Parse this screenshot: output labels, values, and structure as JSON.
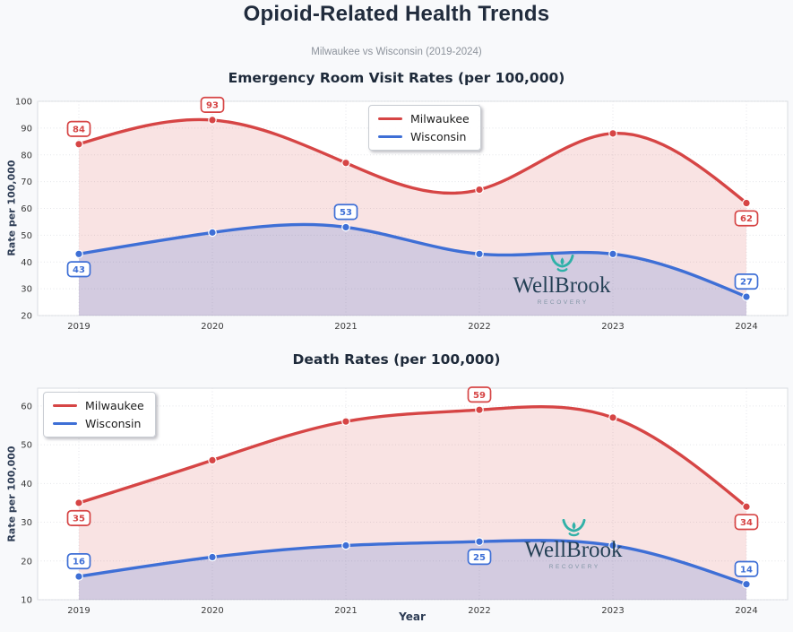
{
  "page": {
    "title": "Opioid-Related Health Trends",
    "subtitle": "Milwaukee vs Wisconsin (2019-2024)",
    "background_color": "#f8f9fb",
    "title_color": "#212c3d",
    "subtitle_color": "#8d939c"
  },
  "watermark": {
    "brand": "WellBrook",
    "tagline": "RECOVERY",
    "icon": "wellbrook-leaf-icon",
    "icon_color": "#29b0a6",
    "brand_color": "#1d3b50"
  },
  "xlabel": "Year",
  "chart_data": [
    {
      "type": "line",
      "title": "Emergency Room Visit Rates (per 100,000)",
      "ylabel": "Rate per 100,000",
      "xlabel": "",
      "x": [
        2019,
        2020,
        2021,
        2022,
        2023,
        2024
      ],
      "series": [
        {
          "name": "Milwaukee",
          "color": "#d64545",
          "values": [
            84,
            93,
            77,
            67,
            88,
            62
          ],
          "point_labels": [
            {
              "index": 0,
              "value": 84,
              "position": "above"
            },
            {
              "index": 1,
              "value": 93,
              "position": "above"
            },
            {
              "index": 5,
              "value": 62,
              "position": "below"
            }
          ]
        },
        {
          "name": "Wisconsin",
          "color": "#3e6fd6",
          "values": [
            43,
            51,
            53,
            43,
            43,
            27
          ],
          "point_labels": [
            {
              "index": 0,
              "value": 43,
              "position": "below"
            },
            {
              "index": 2,
              "value": 53,
              "position": "above"
            },
            {
              "index": 5,
              "value": 27,
              "position": "above"
            }
          ]
        }
      ],
      "ylim": [
        20,
        100
      ],
      "yticks": [
        20,
        30,
        40,
        50,
        60,
        70,
        80,
        90,
        100
      ],
      "grid": true,
      "grid_style": "dotted",
      "area_fill": true,
      "area_opacities": [
        0.15,
        0.2
      ],
      "legend_position": "top-center",
      "smooth": true
    },
    {
      "type": "line",
      "title": "Death Rates (per 100,000)",
      "ylabel": "Rate per 100,000",
      "xlabel": "Year",
      "x": [
        2019,
        2020,
        2021,
        2022,
        2023,
        2024
      ],
      "series": [
        {
          "name": "Milwaukee",
          "color": "#d64545",
          "values": [
            35,
            46,
            56,
            59,
            57,
            34
          ],
          "point_labels": [
            {
              "index": 0,
              "value": 35,
              "position": "below"
            },
            {
              "index": 3,
              "value": 59,
              "position": "above"
            },
            {
              "index": 5,
              "value": 34,
              "position": "below"
            }
          ]
        },
        {
          "name": "Wisconsin",
          "color": "#3e6fd6",
          "values": [
            16,
            21,
            24,
            25,
            24,
            14
          ],
          "point_labels": [
            {
              "index": 0,
              "value": 16,
              "position": "above"
            },
            {
              "index": 3,
              "value": 25,
              "position": "below"
            },
            {
              "index": 5,
              "value": 14,
              "position": "above"
            }
          ]
        }
      ],
      "ylim": [
        10,
        65
      ],
      "yticks": [
        10,
        20,
        30,
        40,
        50,
        60
      ],
      "grid": true,
      "grid_style": "dotted",
      "area_fill": true,
      "area_opacities": [
        0.15,
        0.2
      ],
      "legend_position": "top-left",
      "smooth": true
    }
  ]
}
